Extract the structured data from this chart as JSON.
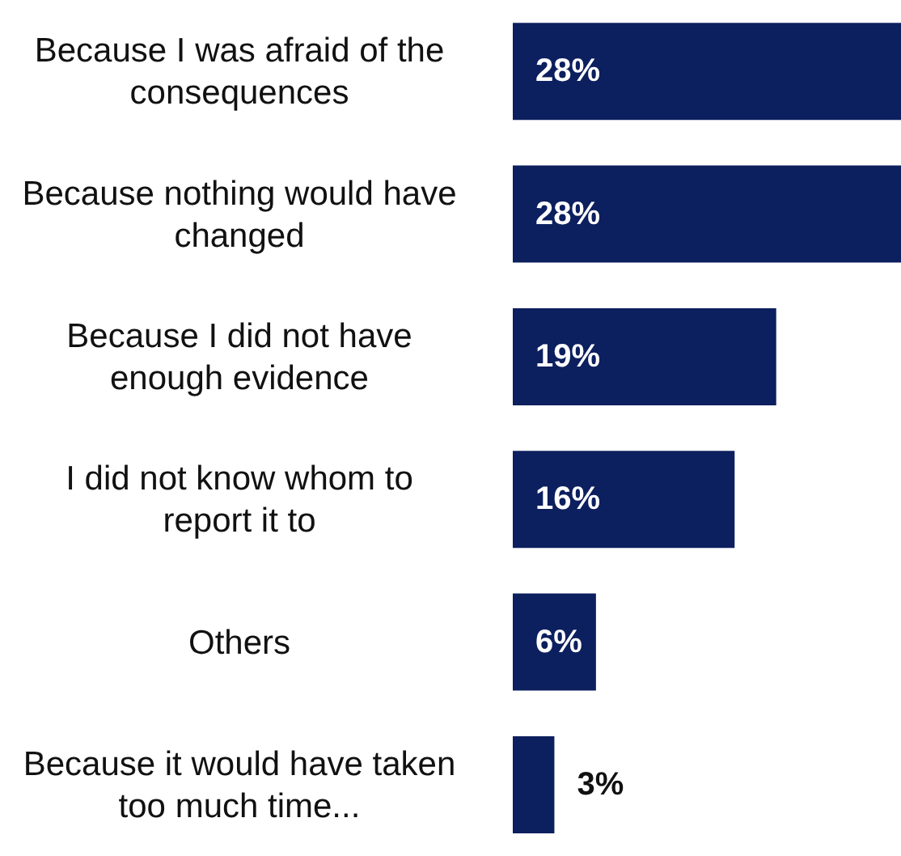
{
  "chart_data": {
    "type": "bar",
    "orientation": "horizontal",
    "categories": [
      "Because I was afraid of the consequences",
      "Because nothing would have changed",
      "Because I did not have enough evidence",
      "I did not know whom to report it to",
      "Others",
      "Because it would have taken too much time..."
    ],
    "values": [
      28,
      28,
      19,
      16,
      6,
      3
    ],
    "value_labels": [
      "28%",
      "28%",
      "19%",
      "16%",
      "6%",
      "3%"
    ],
    "color": "#0c1f5e"
  }
}
